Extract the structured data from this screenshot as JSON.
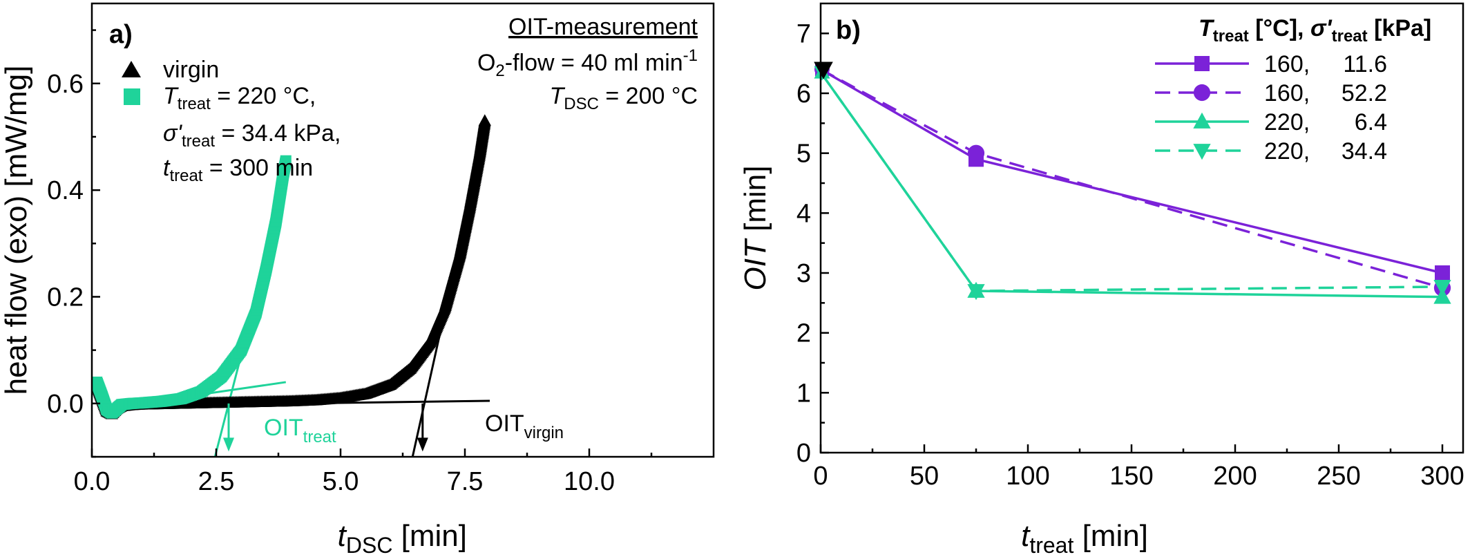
{
  "colors": {
    "black": "#000000",
    "green": "#1fd39a",
    "purple": "#7b22d8"
  },
  "panel_a": {
    "label": "a)",
    "legend": {
      "virgin": "virgin",
      "treat_line1_T": "T",
      "treat_line1_sub": "treat",
      "treat_line1_rest": " = 220 °C,",
      "treat_line2_sigma": "σ'",
      "treat_line2_sub": "treat",
      "treat_line2_rest": " = 34.4 kPa,",
      "treat_line3_t": "t",
      "treat_line3_sub": "treat",
      "treat_line3_rest": " = 300 min"
    },
    "annotation": {
      "title": "OIT-measurement",
      "flow_prefix": "O",
      "flow_sub": "2",
      "flow_mid": "-flow = 40 ml min",
      "flow_sup": "-1",
      "tdsc_T": "T",
      "tdsc_sub": "DSC",
      "tdsc_rest": " = 200 °C",
      "oit_treat_main": "OIT",
      "oit_treat_sub": "treat",
      "oit_virgin_main": "OIT",
      "oit_virgin_sub": "virgin"
    },
    "xlabel_t": "t",
    "xlabel_sub": "DSC",
    "xlabel_rest": " [min]",
    "ylabel": "heat flow (exo) [mW/mg]"
  },
  "panel_b": {
    "label": "b)",
    "legend_header": {
      "T": "T",
      "T_sub": "treat",
      "T_rest": " [°C], ",
      "sigma": "σ'",
      "sigma_sub": "treat",
      "sigma_rest": " [kPa]"
    },
    "xlabel_t": "t",
    "xlabel_sub": "treat",
    "xlabel_rest": " [min]",
    "ylabel_italic": "OIT",
    "ylabel_rest": " [min]"
  },
  "chart_data": [
    {
      "type": "line",
      "panel": "a",
      "xlim": [
        0,
        12.5
      ],
      "ylim": [
        -0.1,
        0.75
      ],
      "xticks": [
        "0.0",
        "2.5",
        "5.0",
        "7.5",
        "10.0"
      ],
      "xtick_values": [
        0,
        2.5,
        5,
        7.5,
        10
      ],
      "yticks": [
        "0.0",
        "0.2",
        "0.4",
        "0.6"
      ],
      "ytick_values": [
        0,
        0.2,
        0.4,
        0.6
      ],
      "series": [
        {
          "name": "virgin",
          "color": "#000000",
          "marker": "triangle-up",
          "points": [
            [
              0.0,
              0.03
            ],
            [
              0.1,
              0.035
            ],
            [
              0.2,
              0.01
            ],
            [
              0.3,
              -0.015
            ],
            [
              0.4,
              -0.02
            ],
            [
              0.5,
              -0.01
            ],
            [
              0.6,
              -0.005
            ],
            [
              0.8,
              -0.003
            ],
            [
              1.0,
              -0.002
            ],
            [
              1.5,
              -0.001
            ],
            [
              2.0,
              0.0
            ],
            [
              2.5,
              0.001
            ],
            [
              3.0,
              0.002
            ],
            [
              3.5,
              0.003
            ],
            [
              4.0,
              0.004
            ],
            [
              4.5,
              0.006
            ],
            [
              5.0,
              0.01
            ],
            [
              5.5,
              0.018
            ],
            [
              6.0,
              0.035
            ],
            [
              6.4,
              0.065
            ],
            [
              6.8,
              0.115
            ],
            [
              7.1,
              0.18
            ],
            [
              7.4,
              0.28
            ],
            [
              7.6,
              0.37
            ],
            [
              7.8,
              0.47
            ],
            [
              7.9,
              0.53
            ]
          ]
        },
        {
          "name": "treat",
          "color": "#1fd39a",
          "marker": "square",
          "points": [
            [
              0.0,
              0.035
            ],
            [
              0.1,
              0.04
            ],
            [
              0.2,
              0.015
            ],
            [
              0.3,
              -0.012
            ],
            [
              0.4,
              -0.018
            ],
            [
              0.5,
              -0.01
            ],
            [
              0.6,
              -0.002
            ],
            [
              0.8,
              0.0
            ],
            [
              1.0,
              0.001
            ],
            [
              1.4,
              0.004
            ],
            [
              1.8,
              0.009
            ],
            [
              2.2,
              0.022
            ],
            [
              2.6,
              0.05
            ],
            [
              3.0,
              0.1
            ],
            [
              3.3,
              0.17
            ],
            [
              3.5,
              0.25
            ],
            [
              3.7,
              0.34
            ],
            [
              3.85,
              0.43
            ],
            [
              3.9,
              0.455
            ]
          ]
        }
      ],
      "baseline_virgin": [
        [
          0.2,
          -0.005
        ],
        [
          8.0,
          0.005
        ]
      ],
      "tangent_virgin": [
        [
          6.4,
          -0.12
        ],
        [
          7.95,
          0.53
        ]
      ],
      "baseline_treat": [
        [
          0.2,
          -0.01
        ],
        [
          3.9,
          0.04
        ]
      ],
      "tangent_treat": [
        [
          2.42,
          -0.12
        ],
        [
          3.0,
          0.09
        ]
      ],
      "oit_treat_arrow_x": 2.75,
      "oit_virgin_arrow_x": 6.65
    },
    {
      "type": "line",
      "panel": "b",
      "xlim": [
        0,
        310
      ],
      "ylim": [
        0,
        7.5
      ],
      "xticks": [
        "0",
        "50",
        "100",
        "150",
        "200",
        "250",
        "300"
      ],
      "xtick_values": [
        0,
        50,
        100,
        150,
        200,
        250,
        300
      ],
      "yticks": [
        "0",
        "1",
        "2",
        "3",
        "4",
        "5",
        "6",
        "7"
      ],
      "ytick_values": [
        0,
        1,
        2,
        3,
        4,
        5,
        6,
        7
      ],
      "series": [
        {
          "name": "160, 11.6",
          "legend_a": "160,",
          "legend_b": "11.6",
          "color": "#7b22d8",
          "marker": "square",
          "dash": false,
          "x": [
            0,
            75,
            300
          ],
          "y": [
            6.4,
            4.9,
            3.0
          ]
        },
        {
          "name": "160, 52.2",
          "legend_a": "160,",
          "legend_b": "52.2",
          "color": "#7b22d8",
          "marker": "circle",
          "dash": true,
          "x": [
            0,
            75,
            300
          ],
          "y": [
            6.4,
            5.0,
            2.75
          ]
        },
        {
          "name": "220, 6.4",
          "legend_a": "220,",
          "legend_b": "6.4",
          "color": "#1fd39a",
          "marker": "triangle-up",
          "dash": false,
          "x": [
            0,
            75,
            300
          ],
          "y": [
            6.35,
            2.7,
            2.6
          ]
        },
        {
          "name": "220, 34.4",
          "legend_a": "220,",
          "legend_b": "34.4",
          "color": "#1fd39a",
          "marker": "triangle-down",
          "dash": true,
          "x": [
            0,
            75,
            300
          ],
          "y": [
            6.35,
            2.7,
            2.77
          ]
        }
      ],
      "virgin_point": {
        "x": 0,
        "y": 6.4,
        "color": "#000000",
        "marker": "triangle-down"
      }
    }
  ]
}
